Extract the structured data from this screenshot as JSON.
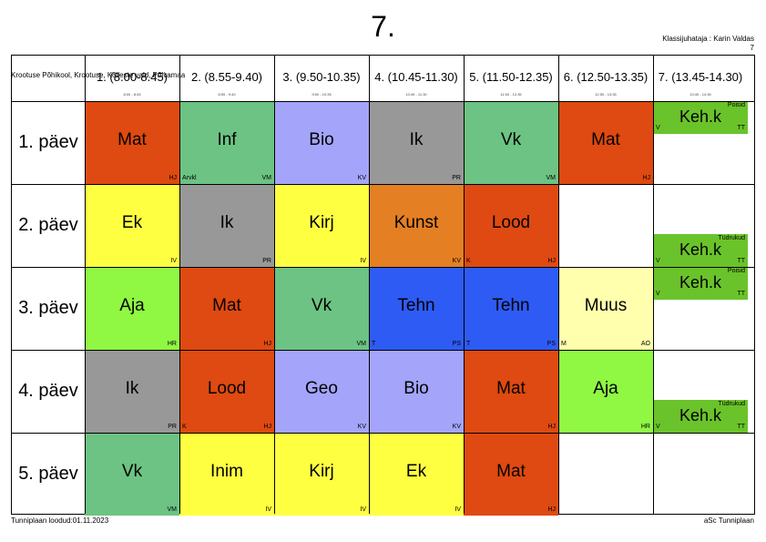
{
  "header": {
    "title": "7.",
    "school": "Krootuse Põhikool, Krootuse, Kõlleste vald, Põlvamaa",
    "class_teacher": "Klassijuhataja : Karin Valdas",
    "class_small": "7"
  },
  "footer": {
    "left": "Tunniplaan loodud:01.11.2023",
    "right": "aSc Tunniplaan"
  },
  "colors": {
    "red": "#de4a11",
    "green": "#6cc383",
    "lavender": "#a4a4fb",
    "gray": "#989898",
    "yellow": "#ffff42",
    "orange": "#e47f23",
    "lime": "#90f742",
    "blue": "#2e5bf4",
    "cream": "#ffffad",
    "pe": "#6ac32a"
  },
  "periods": [
    {
      "label": "1. (8.00-8.45)",
      "time": "8:00 - 8:45"
    },
    {
      "label": "2. (8.55-9.40)",
      "time": "8:55 - 9:40"
    },
    {
      "label": "3. (9.50-10.35)",
      "time": "9:50 - 10:35"
    },
    {
      "label": "4. (10.45-11.30)",
      "time": "10:45 - 11:30"
    },
    {
      "label": "5. (11.50-12.35)",
      "time": "11:50 - 12:35"
    },
    {
      "label": "6. (12.50-13.35)",
      "time": "12:50 - 13:35"
    },
    {
      "label": "7. (13.45-14.30)",
      "time": "13:45 - 14:30"
    }
  ],
  "days": [
    "1. päev",
    "2. päev",
    "3. päev",
    "4. päev",
    "5. päev"
  ],
  "lessons": [
    {
      "day": 0,
      "period": 0,
      "subject": "Mat",
      "teacher": "HJ",
      "room": "",
      "group": "",
      "color": "#de4a11",
      "part": "full"
    },
    {
      "day": 0,
      "period": 1,
      "subject": "Inf",
      "teacher": "VM",
      "room": "Arvkl",
      "group": "",
      "color": "#6cc383",
      "part": "full"
    },
    {
      "day": 0,
      "period": 2,
      "subject": "Bio",
      "teacher": "KV",
      "room": "",
      "group": "",
      "color": "#a4a4fb",
      "part": "full"
    },
    {
      "day": 0,
      "period": 3,
      "subject": "Ik",
      "teacher": "PR",
      "room": "",
      "group": "",
      "color": "#989898",
      "part": "full"
    },
    {
      "day": 0,
      "period": 4,
      "subject": "Vk",
      "teacher": "VM",
      "room": "",
      "group": "",
      "color": "#6cc383",
      "part": "full"
    },
    {
      "day": 0,
      "period": 5,
      "subject": "Mat",
      "teacher": "HJ",
      "room": "",
      "group": "",
      "color": "#de4a11",
      "part": "full"
    },
    {
      "day": 0,
      "period": 6,
      "subject": "Keh.k",
      "teacher": "TT",
      "room": "V",
      "group": "Poisid",
      "color": "#6ac32a",
      "part": "top"
    },
    {
      "day": 1,
      "period": 0,
      "subject": "Ek",
      "teacher": "IV",
      "room": "",
      "group": "",
      "color": "#ffff42",
      "part": "full"
    },
    {
      "day": 1,
      "period": 1,
      "subject": "Ik",
      "teacher": "PR",
      "room": "",
      "group": "",
      "color": "#989898",
      "part": "full"
    },
    {
      "day": 1,
      "period": 2,
      "subject": "Kirj",
      "teacher": "IV",
      "room": "",
      "group": "",
      "color": "#ffff42",
      "part": "full"
    },
    {
      "day": 1,
      "period": 3,
      "subject": "Kunst",
      "teacher": "KV",
      "room": "",
      "group": "",
      "color": "#e47f23",
      "part": "full"
    },
    {
      "day": 1,
      "period": 4,
      "subject": "Lood",
      "teacher": "HJ",
      "room": "K",
      "group": "",
      "color": "#de4a11",
      "part": "full"
    },
    {
      "day": 1,
      "period": 6,
      "subject": "Keh.k",
      "teacher": "TT",
      "room": "V",
      "group": "Tüdrukud",
      "color": "#6ac32a",
      "part": "bottom"
    },
    {
      "day": 2,
      "period": 0,
      "subject": "Aja",
      "teacher": "HR",
      "room": "",
      "group": "",
      "color": "#90f742",
      "part": "full"
    },
    {
      "day": 2,
      "period": 1,
      "subject": "Mat",
      "teacher": "HJ",
      "room": "",
      "group": "",
      "color": "#de4a11",
      "part": "full"
    },
    {
      "day": 2,
      "period": 2,
      "subject": "Vk",
      "teacher": "VM",
      "room": "",
      "group": "",
      "color": "#6cc383",
      "part": "full"
    },
    {
      "day": 2,
      "period": 3,
      "subject": "Tehn",
      "teacher": "PS",
      "room": "T",
      "group": "",
      "color": "#2e5bf4",
      "part": "full"
    },
    {
      "day": 2,
      "period": 4,
      "subject": "Tehn",
      "teacher": "PS",
      "room": "T",
      "group": "",
      "color": "#2e5bf4",
      "part": "full"
    },
    {
      "day": 2,
      "period": 5,
      "subject": "Muus",
      "teacher": "AO",
      "room": "M",
      "group": "",
      "color": "#ffffad",
      "part": "full"
    },
    {
      "day": 2,
      "period": 6,
      "subject": "Keh.k",
      "teacher": "TT",
      "room": "V",
      "group": "Poisid",
      "color": "#6ac32a",
      "part": "top"
    },
    {
      "day": 3,
      "period": 0,
      "subject": "Ik",
      "teacher": "PR",
      "room": "",
      "group": "",
      "color": "#989898",
      "part": "full"
    },
    {
      "day": 3,
      "period": 1,
      "subject": "Lood",
      "teacher": "HJ",
      "room": "K",
      "group": "",
      "color": "#de4a11",
      "part": "full"
    },
    {
      "day": 3,
      "period": 2,
      "subject": "Geo",
      "teacher": "KV",
      "room": "",
      "group": "",
      "color": "#a4a4fb",
      "part": "full"
    },
    {
      "day": 3,
      "period": 3,
      "subject": "Bio",
      "teacher": "KV",
      "room": "",
      "group": "",
      "color": "#a4a4fb",
      "part": "full"
    },
    {
      "day": 3,
      "period": 4,
      "subject": "Mat",
      "teacher": "HJ",
      "room": "",
      "group": "",
      "color": "#de4a11",
      "part": "full"
    },
    {
      "day": 3,
      "period": 5,
      "subject": "Aja",
      "teacher": "HR",
      "room": "",
      "group": "",
      "color": "#90f742",
      "part": "full"
    },
    {
      "day": 3,
      "period": 6,
      "subject": "Keh.k",
      "teacher": "TT",
      "room": "V",
      "group": "Tüdrukud",
      "color": "#6ac32a",
      "part": "bottom"
    },
    {
      "day": 4,
      "period": 0,
      "subject": "Vk",
      "teacher": "VM",
      "room": "",
      "group": "",
      "color": "#6cc383",
      "part": "full"
    },
    {
      "day": 4,
      "period": 1,
      "subject": "Inim",
      "teacher": "IV",
      "room": "",
      "group": "",
      "color": "#ffff42",
      "part": "full"
    },
    {
      "day": 4,
      "period": 2,
      "subject": "Kirj",
      "teacher": "IV",
      "room": "",
      "group": "",
      "color": "#ffff42",
      "part": "full"
    },
    {
      "day": 4,
      "period": 3,
      "subject": "Ek",
      "teacher": "IV",
      "room": "",
      "group": "",
      "color": "#ffff42",
      "part": "full"
    },
    {
      "day": 4,
      "period": 4,
      "subject": "Mat",
      "teacher": "HJ",
      "room": "",
      "group": "",
      "color": "#de4a11",
      "part": "full"
    }
  ]
}
